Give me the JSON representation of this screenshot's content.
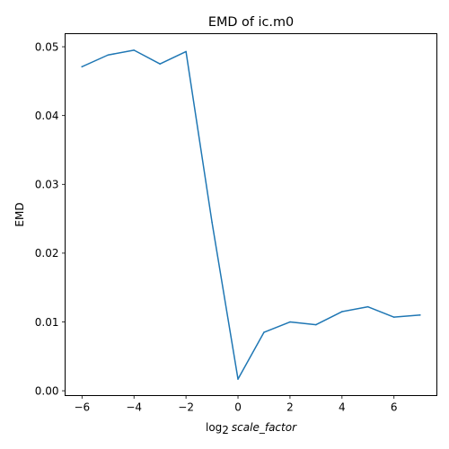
{
  "chart_data": {
    "type": "line",
    "title": "EMD of ic.m0",
    "xlabel_prefix": "log",
    "xlabel_subscript": "2",
    "xlabel_variable": "scale_factor",
    "ylabel": "EMD",
    "xlim": [
      -6.65,
      7.65
    ],
    "ylim": [
      -0.0007,
      0.0519
    ],
    "x_ticks": [
      -6,
      -4,
      -2,
      0,
      2,
      4,
      6
    ],
    "y_ticks": [
      0.0,
      0.01,
      0.02,
      0.03,
      0.04,
      0.05
    ],
    "x_tick_labels": [
      "−6",
      "−4",
      "−2",
      "0",
      "2",
      "4",
      "6"
    ],
    "y_tick_labels": [
      "0.00",
      "0.01",
      "0.02",
      "0.03",
      "0.04",
      "0.05"
    ],
    "grid": false,
    "series": [
      {
        "color": "#1f77b4",
        "x": [
          -6,
          -5,
          -4,
          -3,
          -2,
          -1,
          0,
          1,
          2,
          3,
          4,
          5,
          6,
          7
        ],
        "y": [
          0.0471,
          0.0488,
          0.0495,
          0.0475,
          0.0493,
          0.0245,
          0.0017,
          0.0085,
          0.01,
          0.0096,
          0.0115,
          0.0122,
          0.0107,
          0.011
        ]
      }
    ]
  }
}
